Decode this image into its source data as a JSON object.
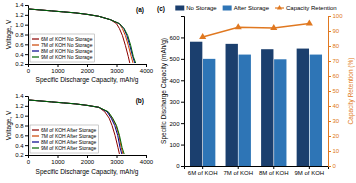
{
  "chart_data": [
    {
      "type": "line",
      "title": "(a)",
      "xlabel": "Specific Discharge Capacity, mAh/g",
      "ylabel": "Voltage, V",
      "xlim": [
        0,
        4000
      ],
      "ylim": [
        0.2,
        1.4
      ],
      "xticks": [
        0,
        1000,
        2000,
        3000,
        4000
      ],
      "yticks": [
        0.2,
        0.4,
        0.6,
        0.8,
        {
          "value": 1.0,
          "label": "1.0"
        },
        1.2,
        1.4
      ],
      "grid": false,
      "legend": "lower left",
      "series": [
        {
          "name": "6M of KOH No Storage",
          "color": "#8b0000",
          "x": [
            0,
            400,
            800,
            1200,
            1600,
            2000,
            2400,
            2800,
            3000,
            3100,
            3200,
            3300,
            3400,
            3450
          ],
          "values": [
            1.32,
            1.3,
            1.28,
            1.26,
            1.24,
            1.21,
            1.17,
            1.1,
            1.02,
            0.92,
            0.78,
            0.58,
            0.35,
            0.22
          ]
        },
        {
          "name": "7M of KOH No Storage",
          "color": "#cc4400",
          "x": [
            0,
            400,
            800,
            1200,
            1600,
            2000,
            2400,
            2800,
            3100,
            3200,
            3300,
            3400,
            3500,
            3560
          ],
          "values": [
            1.32,
            1.3,
            1.28,
            1.26,
            1.24,
            1.21,
            1.17,
            1.1,
            1.02,
            0.92,
            0.78,
            0.58,
            0.35,
            0.22
          ]
        },
        {
          "name": "8M of KOH No Storage",
          "color": "#00008b",
          "x": [
            0,
            400,
            800,
            1200,
            1600,
            2000,
            2400,
            2800,
            3100,
            3250,
            3350,
            3450,
            3550,
            3620
          ],
          "values": [
            1.32,
            1.3,
            1.28,
            1.26,
            1.24,
            1.21,
            1.17,
            1.1,
            1.02,
            0.92,
            0.78,
            0.58,
            0.35,
            0.22
          ]
        },
        {
          "name": "9M of KOH No Storage",
          "color": "#006400",
          "x": [
            0,
            400,
            800,
            1200,
            1600,
            2000,
            2400,
            2800,
            3100,
            3260,
            3380,
            3480,
            3570,
            3650
          ],
          "values": [
            1.32,
            1.3,
            1.28,
            1.26,
            1.24,
            1.21,
            1.17,
            1.1,
            1.02,
            0.92,
            0.78,
            0.58,
            0.35,
            0.22
          ]
        }
      ]
    },
    {
      "type": "line",
      "title": "(b)",
      "xlabel": "Specific Discharge Capacity, mAh/g",
      "ylabel": "Voltage, V",
      "xlim": [
        0,
        4000
      ],
      "ylim": [
        0.2,
        1.4
      ],
      "xticks": [
        0,
        1000,
        2000,
        3000,
        4000
      ],
      "yticks": [
        0.2,
        0.4,
        0.6,
        0.8,
        {
          "value": 1.0,
          "label": "1.0"
        },
        1.2,
        1.4
      ],
      "grid": false,
      "legend": "lower left",
      "series": [
        {
          "name": "6M of KOH After Storage",
          "color": "#8b0000",
          "x": [
            0,
            400,
            800,
            1200,
            1600,
            2000,
            2400,
            2600,
            2750,
            2850,
            2950,
            3050,
            3100
          ],
          "values": [
            1.32,
            1.3,
            1.28,
            1.26,
            1.24,
            1.21,
            1.17,
            1.08,
            0.95,
            0.8,
            0.6,
            0.35,
            0.22
          ]
        },
        {
          "name": "7M of KOH After Storage",
          "color": "#cc4400",
          "x": [
            0,
            400,
            800,
            1200,
            1600,
            2000,
            2400,
            2700,
            2850,
            2980,
            3080,
            3160,
            3220
          ],
          "values": [
            1.32,
            1.3,
            1.28,
            1.26,
            1.24,
            1.21,
            1.17,
            1.08,
            0.95,
            0.8,
            0.6,
            0.35,
            0.22
          ]
        },
        {
          "name": "8M of KOH After Storage",
          "color": "#00008b",
          "x": [
            0,
            400,
            800,
            1200,
            1600,
            2000,
            2400,
            2680,
            2820,
            2940,
            3040,
            3120,
            3180
          ],
          "values": [
            1.32,
            1.3,
            1.28,
            1.26,
            1.24,
            1.21,
            1.17,
            1.08,
            0.95,
            0.8,
            0.6,
            0.35,
            0.22
          ]
        },
        {
          "name": "9M of KOH After Storage",
          "color": "#006400",
          "x": [
            0,
            400,
            800,
            1200,
            1600,
            2000,
            2400,
            2720,
            2870,
            3000,
            3100,
            3190,
            3260
          ],
          "values": [
            1.32,
            1.3,
            1.28,
            1.26,
            1.24,
            1.21,
            1.17,
            1.08,
            0.95,
            0.8,
            0.6,
            0.35,
            0.22
          ]
        }
      ]
    },
    {
      "type": "bar",
      "title": "(c)",
      "categories": [
        "6M of KOH",
        "7M of KOH",
        "8M of KOH",
        "9M of KOH"
      ],
      "ylabel": "Specific Discharge Capacity (mAh/g)",
      "y2label": "Capacity Retention (%)",
      "ylim": [
        0,
        700
      ],
      "yticks": [
        0,
        100,
        200,
        300,
        400,
        500,
        600
      ],
      "y2lim": [
        0,
        100
      ],
      "y2ticks": [
        0,
        10,
        20,
        30,
        40,
        50,
        60,
        70,
        80,
        90,
        100
      ],
      "grid": false,
      "legend": "top",
      "series": [
        {
          "name": "No Storage",
          "color": "#1b3f6e",
          "values": [
            580,
            570,
            545,
            548
          ]
        },
        {
          "name": "After Storage",
          "color": "#2e75b6",
          "values": [
            500,
            520,
            498,
            520
          ]
        },
        {
          "name": "Capacity Retention",
          "type": "line",
          "axis": "y2",
          "color": "#e07820",
          "marker": "triangle",
          "values": [
            86.0,
            92.5,
            92.0,
            95.0
          ]
        }
      ]
    }
  ]
}
